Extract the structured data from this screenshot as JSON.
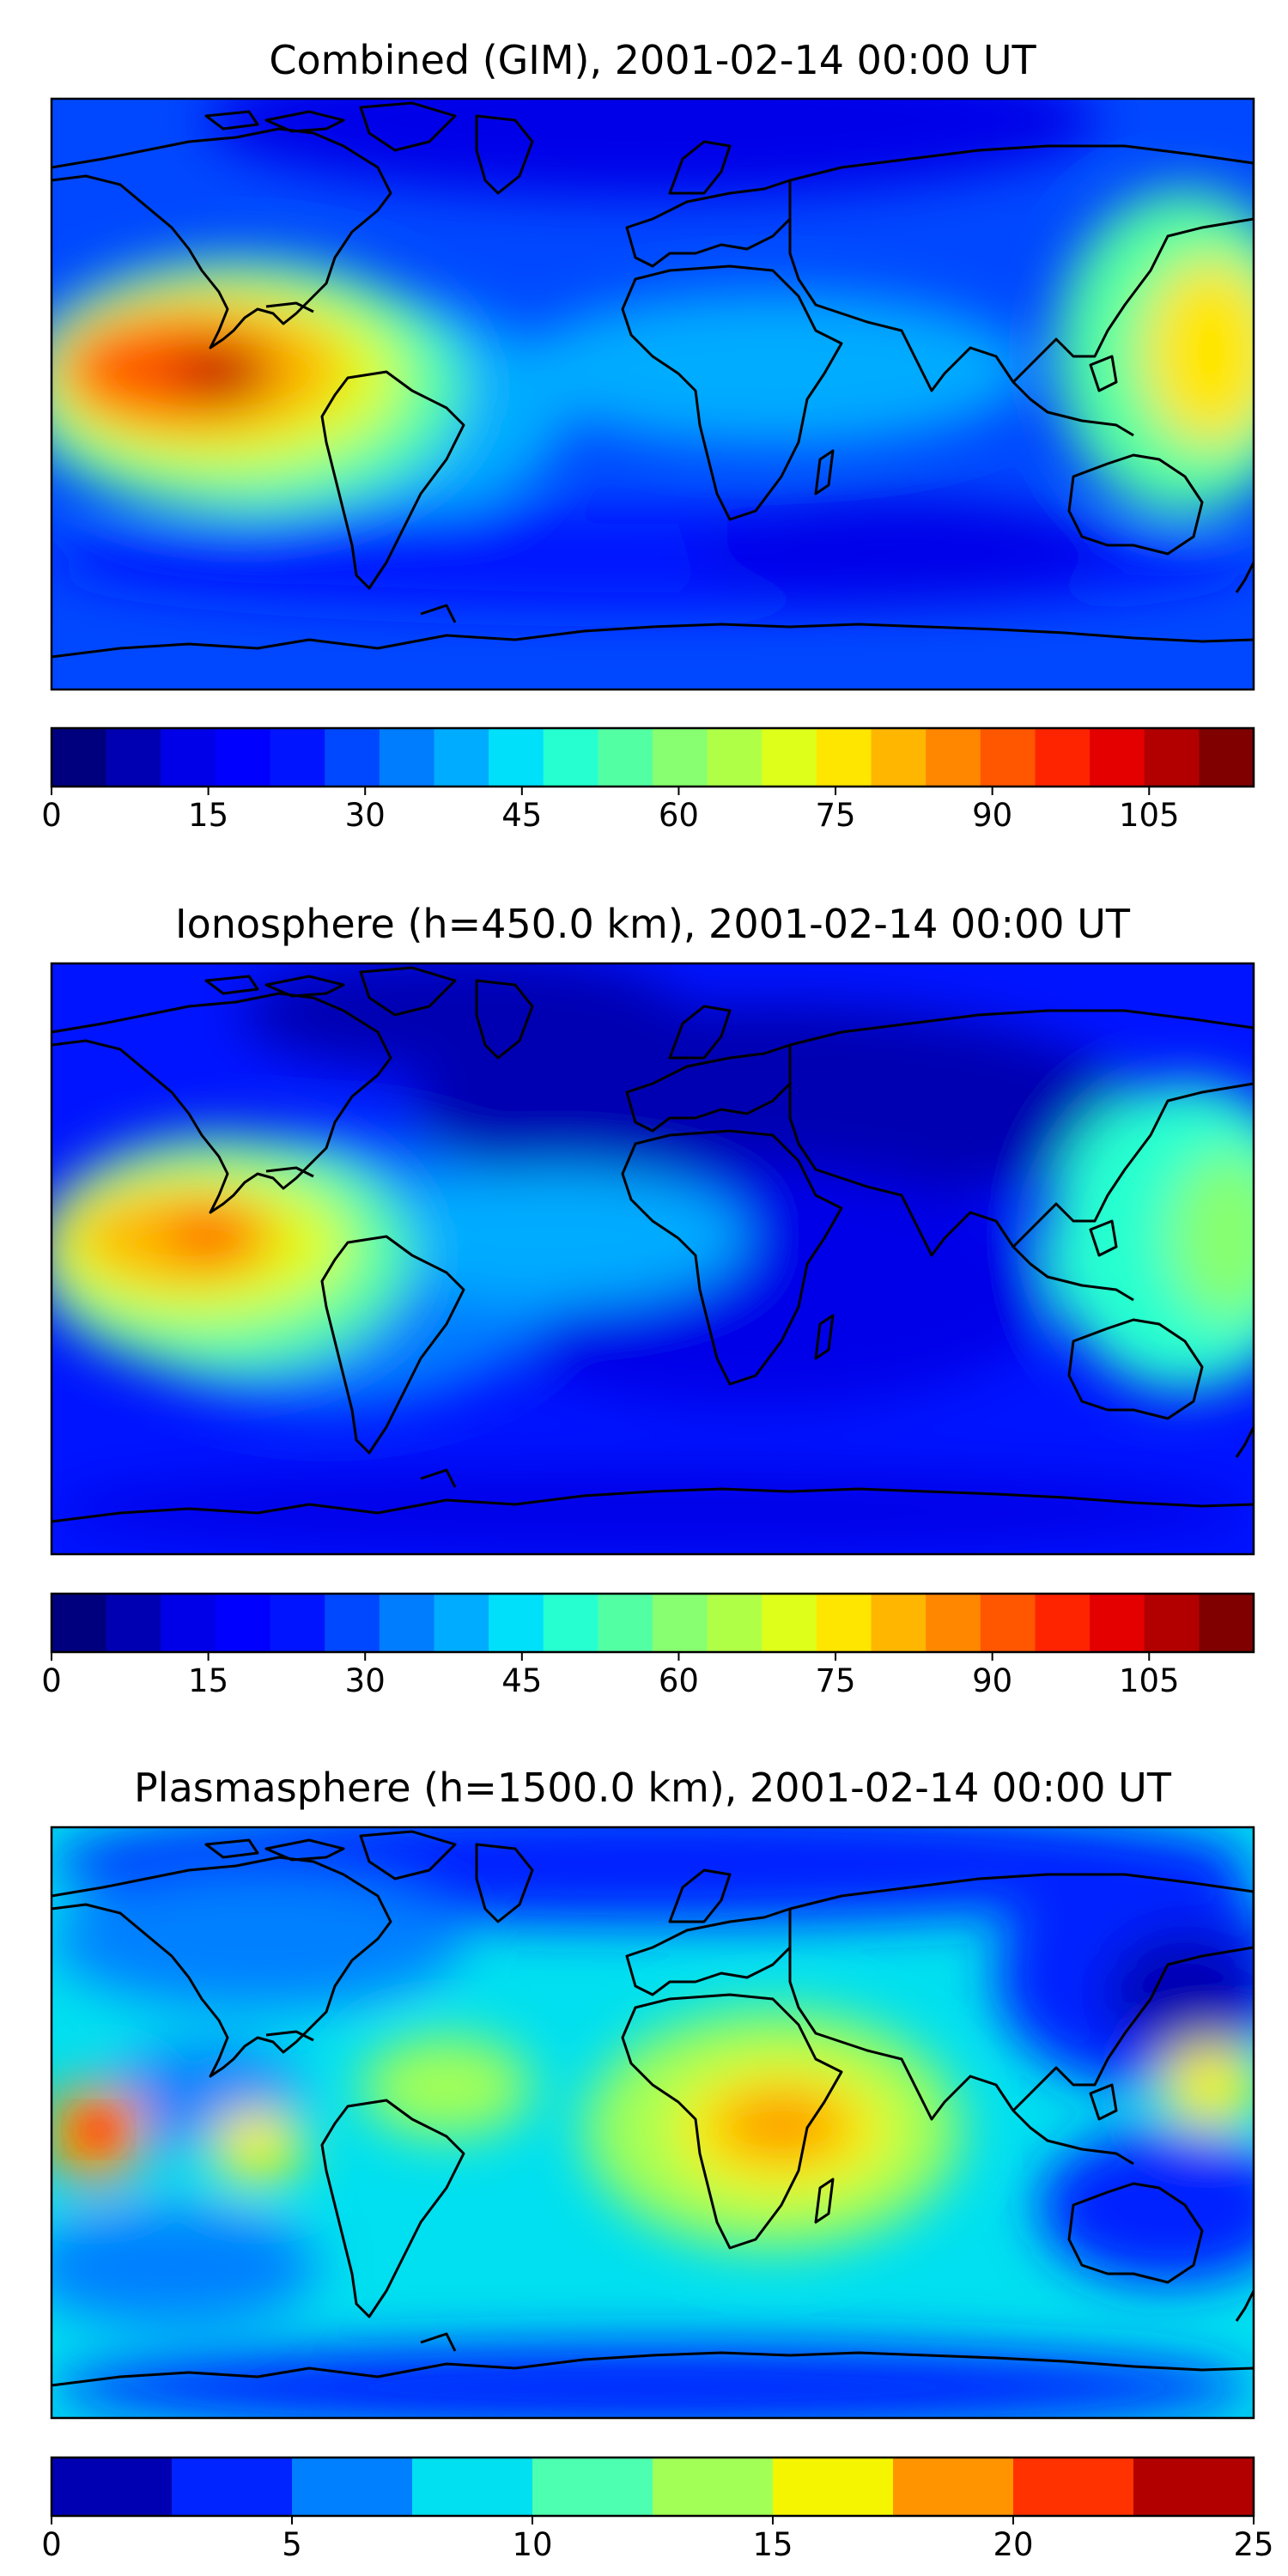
{
  "panels": [
    {
      "title": "Combined (GIM), 2001-02-14 00:00 UT",
      "colorbar": {
        "colors": [
          "#00007f",
          "#0000b2",
          "#0000e8",
          "#0000ff",
          "#0014ff",
          "#0048ff",
          "#007cff",
          "#00acff",
          "#00e0fb",
          "#26ffd0",
          "#53ffa3",
          "#87ff70",
          "#b0ff47",
          "#ddff1a",
          "#ffe600",
          "#ffb600",
          "#ff8700",
          "#ff5700",
          "#ff2400",
          "#e50000",
          "#b20000",
          "#800000"
        ],
        "vmin": 0,
        "vmax": 115,
        "ticks": [
          "0",
          "15",
          "30",
          "45",
          "60",
          "75",
          "90",
          "105"
        ],
        "tick_values": [
          0,
          15,
          30,
          45,
          60,
          75,
          90,
          105
        ]
      }
    },
    {
      "title": "Ionosphere  (h=450.0 km), 2001-02-14 00:00 UT",
      "colorbar": {
        "colors": [
          "#00007f",
          "#0000b2",
          "#0000e8",
          "#0000ff",
          "#0014ff",
          "#0048ff",
          "#007cff",
          "#00acff",
          "#00e0fb",
          "#26ffd0",
          "#53ffa3",
          "#87ff70",
          "#b0ff47",
          "#ddff1a",
          "#ffe600",
          "#ffb600",
          "#ff8700",
          "#ff5700",
          "#ff2400",
          "#e50000",
          "#b20000",
          "#800000"
        ],
        "vmin": 0,
        "vmax": 115,
        "ticks": [
          "0",
          "15",
          "30",
          "45",
          "60",
          "75",
          "90",
          "105"
        ],
        "tick_values": [
          0,
          15,
          30,
          45,
          60,
          75,
          90,
          105
        ]
      }
    },
    {
      "title": "Plasmasphere (h=1500.0 km), 2001-02-14 00:00 UT",
      "colorbar": {
        "colors": [
          "#0000b2",
          "#0024ff",
          "#0080ff",
          "#00e0f0",
          "#4dffb0",
          "#a2ff56",
          "#f5f500",
          "#ff9400",
          "#ff3200",
          "#b20000"
        ],
        "vmin": 0,
        "vmax": 25,
        "ticks": [
          "0",
          "5",
          "10",
          "15",
          "20",
          "25"
        ],
        "tick_values": [
          0,
          5,
          10,
          15,
          20,
          25
        ]
      }
    }
  ]
}
